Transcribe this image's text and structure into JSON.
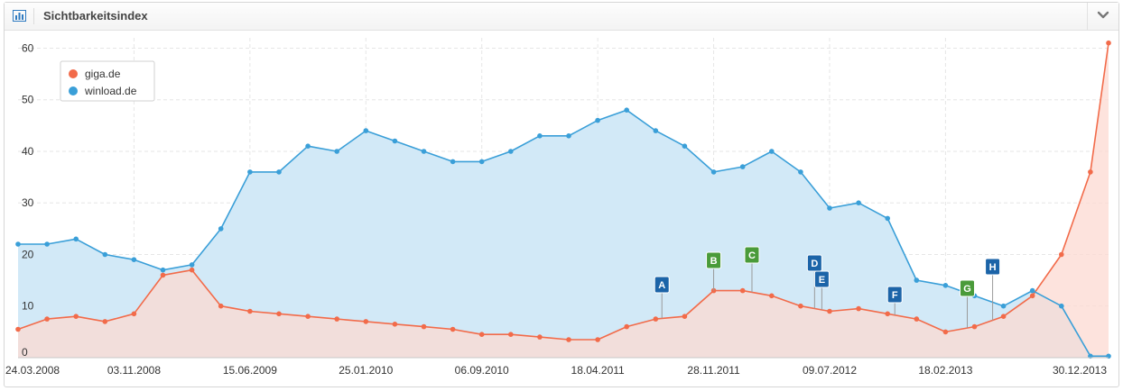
{
  "header": {
    "title": "Sichtbarkeitsindex",
    "icon": "bar-chart-icon",
    "collapse_icon": "chevron-down-icon"
  },
  "chart_data": {
    "type": "area",
    "title": "",
    "xlabel": "",
    "ylabel": "",
    "ylim": [
      0,
      62
    ],
    "grid": true,
    "legend_position": "top-left",
    "y_ticks": [
      0,
      10,
      20,
      30,
      40,
      50,
      60
    ],
    "x_ticks": [
      "24.03.2008",
      "03.11.2008",
      "15.06.2009",
      "25.01.2010",
      "06.09.2010",
      "18.04.2011",
      "28.11.2011",
      "09.07.2012",
      "18.02.2013",
      "30.12.2013"
    ],
    "x": [
      "2008-03-24",
      "2008-05-19",
      "2008-07-14",
      "2008-09-08",
      "2008-11-03",
      "2008-12-29",
      "2009-02-23",
      "2009-04-20",
      "2009-06-15",
      "2009-08-10",
      "2009-10-05",
      "2009-11-30",
      "2010-01-25",
      "2010-03-22",
      "2010-05-17",
      "2010-07-12",
      "2010-09-06",
      "2010-11-01",
      "2010-12-27",
      "2011-02-21",
      "2011-04-18",
      "2011-06-13",
      "2011-08-08",
      "2011-10-03",
      "2011-11-28",
      "2012-01-23",
      "2012-03-19",
      "2012-05-14",
      "2012-07-09",
      "2012-09-03",
      "2012-10-29",
      "2012-12-24",
      "2013-02-18",
      "2013-04-15",
      "2013-06-10",
      "2013-08-05",
      "2013-09-30",
      "2013-11-25",
      "2013-12-30"
    ],
    "series": [
      {
        "name": "giga.de",
        "color": "#f26b4a",
        "fill": "#fcd9d1",
        "values": [
          5.5,
          7.5,
          8,
          7,
          8.5,
          16,
          17,
          10,
          9,
          8.5,
          8,
          7.5,
          7,
          6.5,
          6,
          5.5,
          4.5,
          4.5,
          4,
          3.5,
          3.5,
          6,
          7.5,
          8,
          13,
          13,
          12,
          10,
          9,
          9.5,
          8.5,
          7.5,
          5,
          6,
          8,
          12,
          20,
          36,
          61
        ]
      },
      {
        "name": "winload.de",
        "color": "#3a9fd8",
        "fill": "#d2e9f7",
        "values": [
          22,
          22,
          23,
          20,
          19,
          17,
          18,
          25,
          36,
          36,
          41,
          40,
          44,
          42,
          40,
          38,
          38,
          40,
          43,
          43,
          46,
          48,
          44,
          41,
          36,
          37,
          40,
          36,
          29,
          30,
          27,
          15,
          14,
          12,
          10,
          13,
          10,
          0.3,
          0.3
        ]
      }
    ],
    "annotations": [
      {
        "label": "A",
        "date": "2011-08-20",
        "color": "#1c64a8"
      },
      {
        "label": "B",
        "date": "2011-11-28",
        "color": "#4a9b3a"
      },
      {
        "label": "C",
        "date": "2012-02-10",
        "color": "#4a9b3a"
      },
      {
        "label": "D",
        "date": "2012-06-10",
        "color": "#1c64a8"
      },
      {
        "label": "E",
        "date": "2012-06-24",
        "color": "#1c64a8"
      },
      {
        "label": "F",
        "date": "2012-11-12",
        "color": "#1c64a8"
      },
      {
        "label": "G",
        "date": "2013-04-01",
        "color": "#4a9b3a"
      },
      {
        "label": "H",
        "date": "2013-05-20",
        "color": "#1c64a8"
      }
    ]
  }
}
